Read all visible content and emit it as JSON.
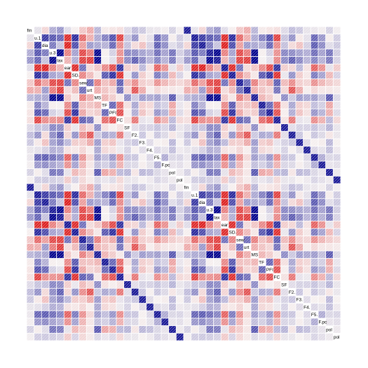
{
  "chart_data": {
    "type": "heatmap",
    "style": "corrgram",
    "colormap": "blue-white-red",
    "colors": {
      "strong_pos": "#00008b",
      "pos": "#3f51d8",
      "neutral": "#f5f0f0",
      "neg": "#e03030",
      "grid": "#ffffff"
    },
    "cell_style": "shaded squares with white diagonal hatching",
    "diagonal_labels": [
      "fin",
      "u.1",
      "dia",
      "u.3",
      "lax",
      "ear",
      "SD.",
      "sew",
      "urt",
      "MS",
      "TF",
      "PFI",
      "FC",
      "SF",
      "F2.",
      "F3.",
      "F4.",
      "F5.",
      "F.pc",
      "pol",
      "pol",
      "fin",
      "u.1",
      "dia",
      "u.3",
      "lax",
      "ear",
      "SD.",
      "sew",
      "urt",
      "MS",
      "TF",
      "PFI",
      "FC",
      "SF",
      "F2.",
      "F3.",
      "F4.",
      "F5.",
      "F.pc",
      "pol",
      "pol"
    ],
    "value_range": [
      -1,
      1
    ]
  }
}
